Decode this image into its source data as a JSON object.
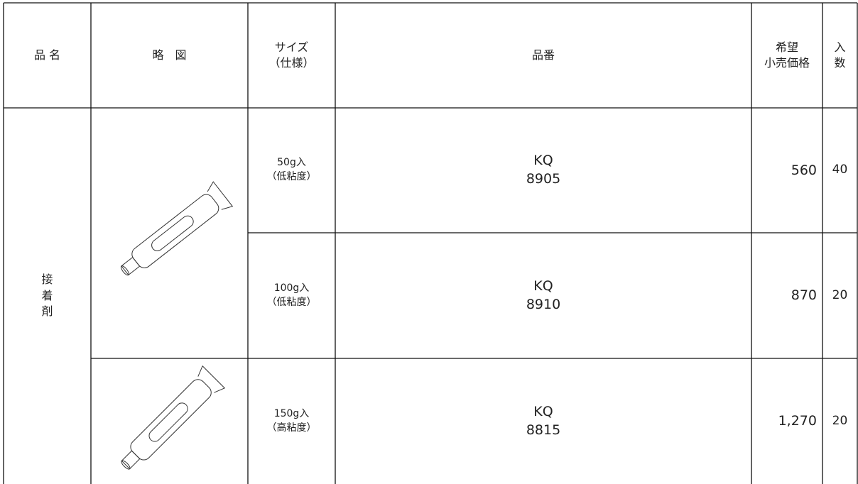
{
  "header": [
    "品 名",
    "略　図",
    "サイズ\n（仕様）",
    "品番",
    "希望\n小売価格",
    "入\n数"
  ],
  "category": "接\n着\n剤",
  "rows": [
    {
      "size": "50g入\n（低粘度）",
      "part": "KQ\n8905",
      "price": "560",
      "quantity": "40"
    },
    {
      "size": "100g入\n（低粘度）",
      "part": "KQ\n8910",
      "price": "870",
      "quantity": "20"
    },
    {
      "size": "150g入\n（高粘度）",
      "part": "KQ\n8815",
      "price": "1,270",
      "quantity": "20"
    }
  ]
}
